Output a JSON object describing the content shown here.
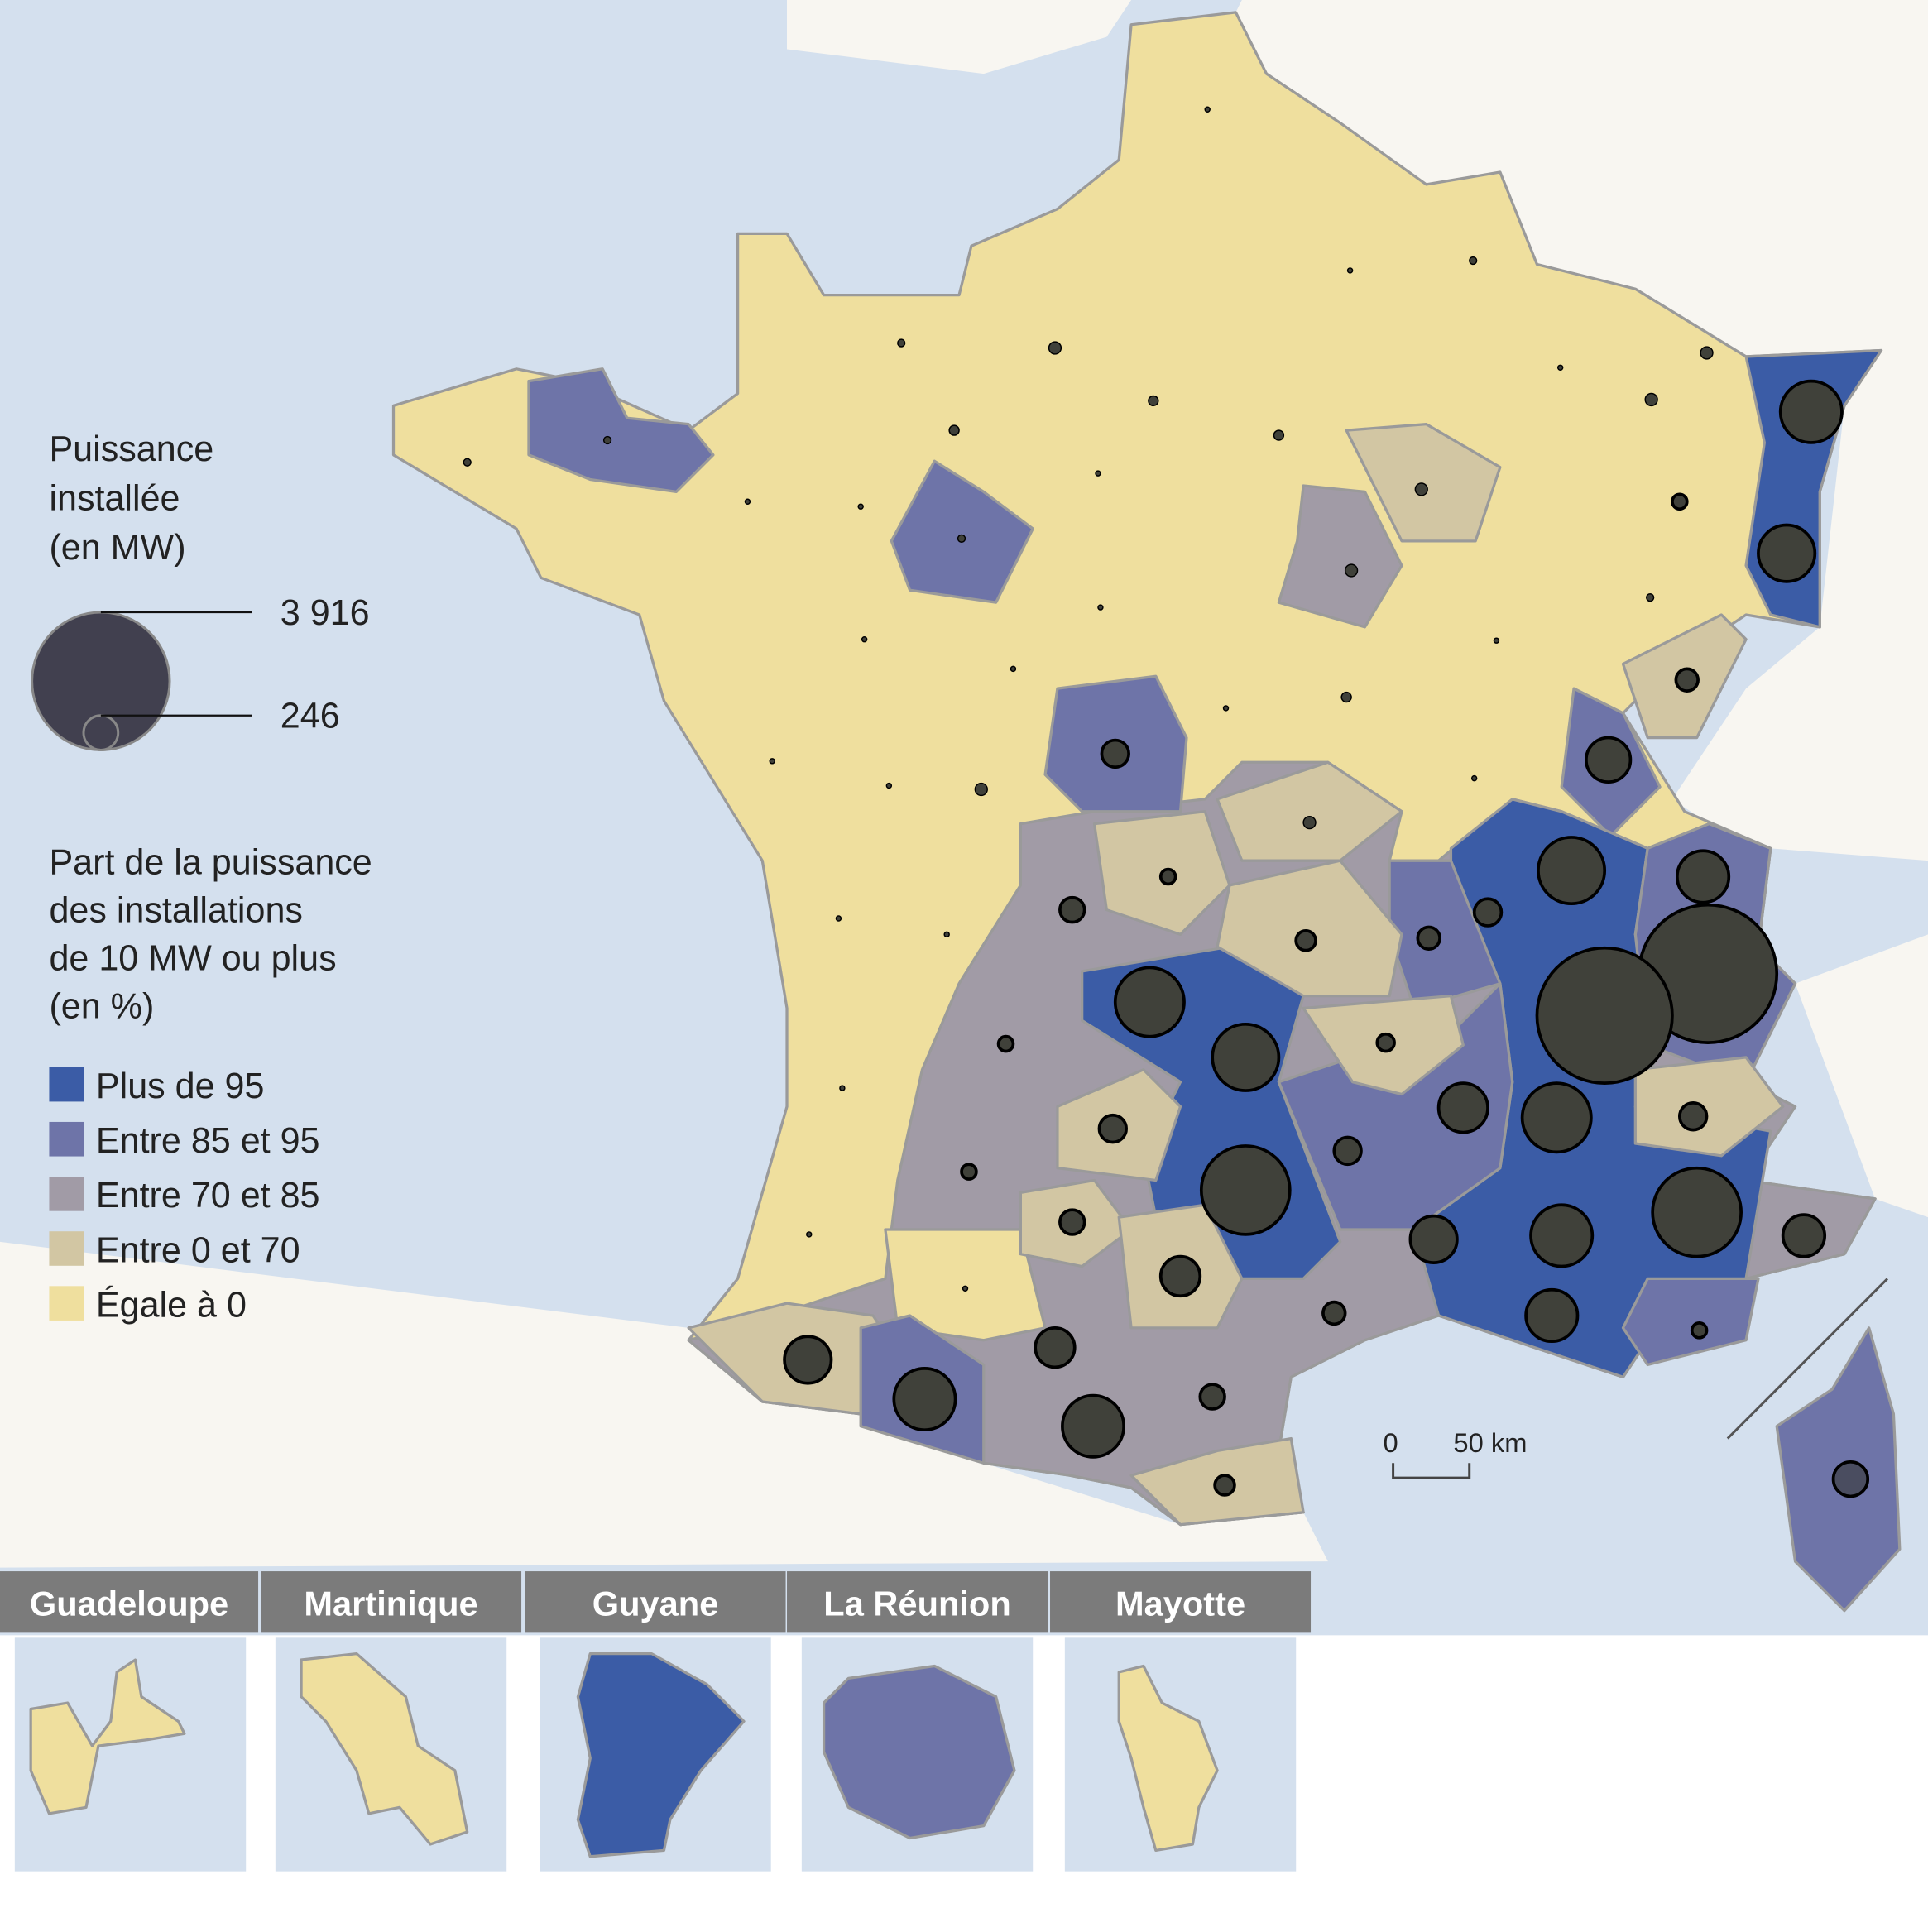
{
  "legend": {
    "size_title": [
      "Puissance",
      "installée",
      "(en MW)"
    ],
    "sizes": [
      {
        "value": 3916,
        "label": "3 916"
      },
      {
        "value": 246,
        "label": "246"
      }
    ],
    "class_title": [
      "Part de la puissance",
      "des installations",
      "de 10 MW ou plus",
      "(en %)"
    ],
    "classes": [
      {
        "label": "Plus de 95",
        "color": "#3b5ca6"
      },
      {
        "label": "Entre 85 et 95",
        "color": "#6e74a8"
      },
      {
        "label": "Entre 70 et 85",
        "color": "#a19ba6"
      },
      {
        "label": "Entre 0 et 70",
        "color": "#d2c6a3"
      },
      {
        "label": "Égale à 0",
        "color": "#efdf9e"
      }
    ]
  },
  "scale": {
    "start": "0",
    "end": "50 km"
  },
  "insets": [
    "Guadeloupe",
    "Martinique",
    "Guyane",
    "La Réunion",
    "Mayotte"
  ],
  "installed_mw": [
    780,
    661,
    3916,
    3778,
    551,
    910,
    405,
    101,
    151,
    101,
    980,
    910,
    1618,
    499,
    980,
    151,
    1618,
    780,
    451,
    361,
    551,
    45,
    101,
    151,
    61,
    80,
    31,
    45,
    125,
    151,
    45,
    151,
    45,
    125,
    320,
    320,
    451,
    780,
    780,
    125,
    80,
    245,
    125,
    125,
    5,
    5,
    11,
    5,
    31,
    31,
    45,
    11,
    5,
    5,
    20,
    20,
    31,
    31,
    5,
    5,
    5,
    31,
    5,
    5,
    5,
    5,
    5,
    11,
    20,
    11,
    31,
    20,
    5,
    11,
    11,
    5,
    5,
    5,
    5,
    5,
    20
  ]
}
